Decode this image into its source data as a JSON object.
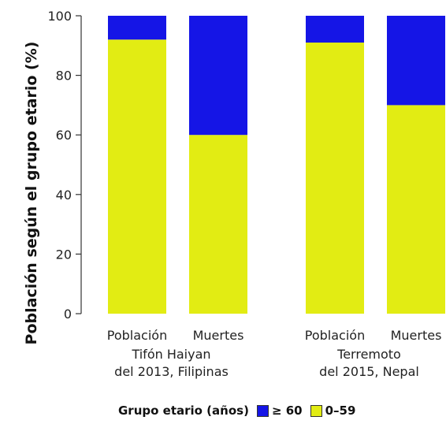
{
  "chart_data": {
    "type": "bar",
    "stacked": true,
    "ylabel": "Población según el grupo etario (%)",
    "ylim": [
      0,
      100
    ],
    "yticks": [
      0,
      20,
      40,
      60,
      80,
      100
    ],
    "groups": [
      {
        "label_lines": [
          "Tifón Haiyan",
          "del 2013, Filipinas"
        ],
        "bars": [
          {
            "category": "Población",
            "values": {
              "0–59": 92,
              "≥ 60": 8
            }
          },
          {
            "category": "Muertes",
            "values": {
              "0–59": 60,
              "≥ 60": 40
            }
          }
        ]
      },
      {
        "label_lines": [
          "Terremoto",
          "del 2015, Nepal"
        ],
        "bars": [
          {
            "category": "Población",
            "values": {
              "0–59": 91,
              "≥ 60": 9
            }
          },
          {
            "category": "Muertes",
            "values": {
              "0–59": 70,
              "≥ 60": 30
            }
          }
        ]
      }
    ],
    "series": [
      {
        "name": "0–59",
        "color": "#e2ec13"
      },
      {
        "name": "≥ 60",
        "color": "#1515e6"
      }
    ],
    "legend": {
      "title": "Grupo etario (años)",
      "placement": "bottom",
      "items": [
        {
          "name": "≥ 60",
          "color": "#1515e6"
        },
        {
          "name": "0–59",
          "color": "#e2ec13"
        }
      ]
    },
    "grid": false
  }
}
